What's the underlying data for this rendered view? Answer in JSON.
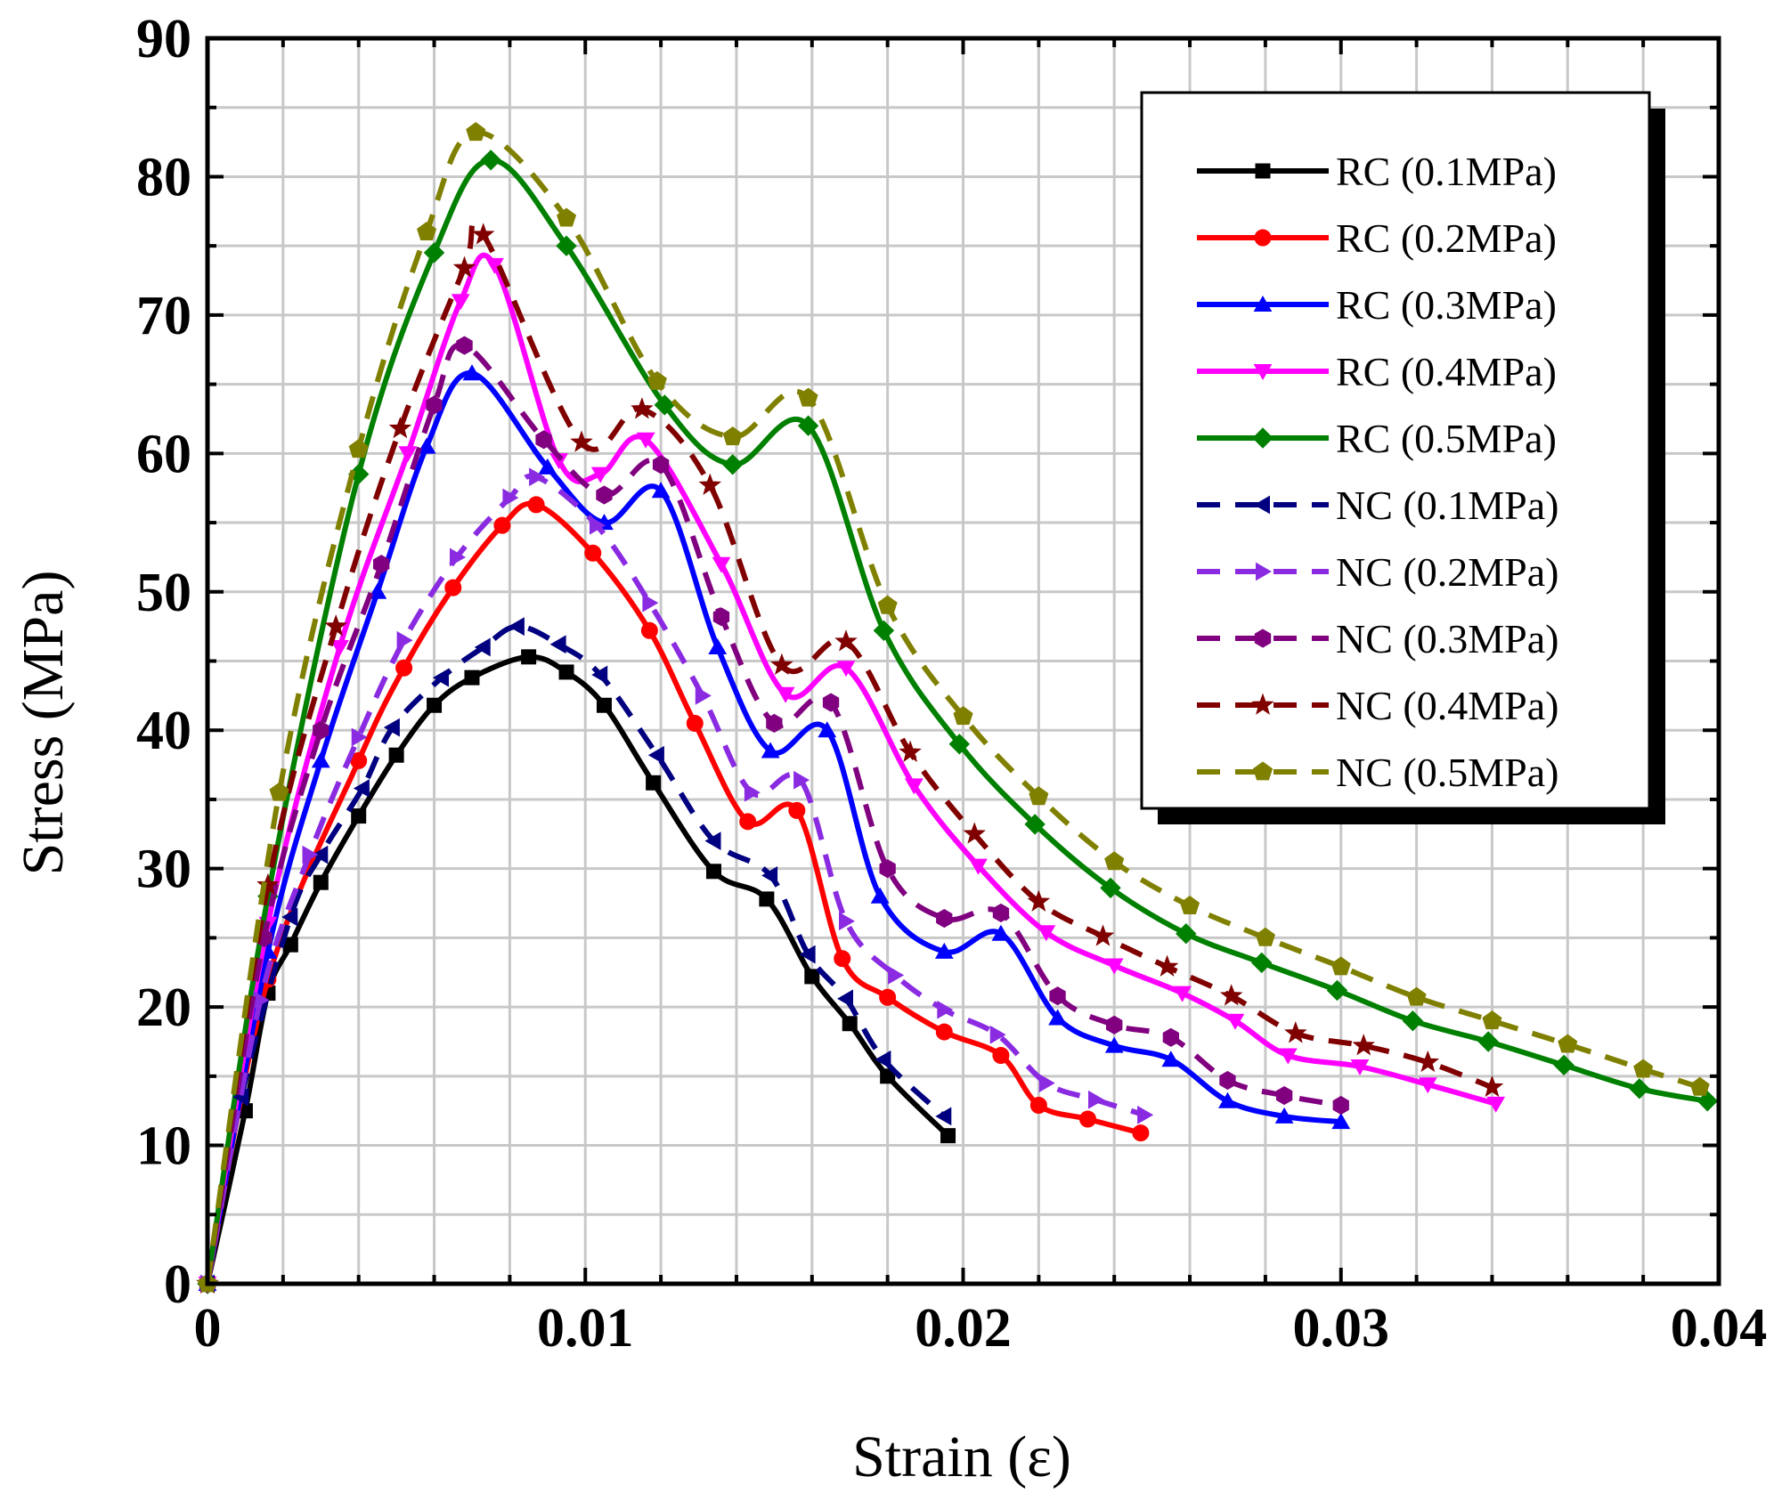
{
  "chart_data": {
    "type": "line",
    "title": "",
    "xlabel": "Strain (ε)",
    "ylabel": "Stress (MPa)",
    "xlim": [
      0,
      0.04
    ],
    "ylim": [
      0,
      90
    ],
    "x_ticks": [
      0,
      0.01,
      0.02,
      0.03,
      0.04
    ],
    "x_tick_labels": [
      "0",
      "0.01",
      "0.02",
      "0.03",
      "0.04"
    ],
    "y_ticks": [
      0,
      10,
      20,
      30,
      40,
      50,
      60,
      70,
      80,
      90
    ],
    "y_tick_labels": [
      "0",
      "10",
      "20",
      "30",
      "40",
      "50",
      "60",
      "70",
      "80",
      "90"
    ],
    "grid": true,
    "legend_position": "top-right",
    "series": [
      {
        "name": "RC (0.1MPa)",
        "color": "#000000",
        "dash": "solid",
        "marker": "square",
        "x": [
          0,
          0.001,
          0.0016,
          0.0022,
          0.003,
          0.004,
          0.005,
          0.006,
          0.007,
          0.0085,
          0.0095,
          0.0105,
          0.0118,
          0.0134,
          0.0148,
          0.016,
          0.017,
          0.018,
          0.0196
        ],
        "y": [
          0,
          12.5,
          21,
          24.5,
          29,
          33.8,
          38.2,
          41.8,
          43.8,
          45.3,
          44.2,
          41.8,
          36.2,
          29.8,
          27.8,
          22.2,
          18.8,
          15,
          10.7
        ]
      },
      {
        "name": "RC (0.2MPa)",
        "color": "#ff0000",
        "dash": "solid",
        "marker": "circle",
        "x": [
          0,
          0.0016,
          0.004,
          0.0052,
          0.0065,
          0.0078,
          0.0087,
          0.0102,
          0.0117,
          0.0129,
          0.0143,
          0.0156,
          0.0168,
          0.018,
          0.0195,
          0.021,
          0.022,
          0.0233,
          0.0247
        ],
        "y": [
          0,
          22,
          37.8,
          44.5,
          50.3,
          54.8,
          56.3,
          52.8,
          47.2,
          40.5,
          33.4,
          34.2,
          23.5,
          20.7,
          18.2,
          16.5,
          12.9,
          11.9,
          10.9
        ]
      },
      {
        "name": "RC (0.3MPa)",
        "color": "#0000ff",
        "dash": "solid",
        "marker": "triangle-up",
        "x": [
          0,
          0.0016,
          0.003,
          0.0045,
          0.0058,
          0.007,
          0.009,
          0.0105,
          0.012,
          0.0135,
          0.0149,
          0.0164,
          0.0178,
          0.0195,
          0.021,
          0.0225,
          0.024,
          0.0255,
          0.027,
          0.0285,
          0.03
        ],
        "y": [
          0,
          24,
          37.8,
          50,
          60.5,
          65.8,
          59,
          55,
          57.3,
          46,
          38.5,
          40,
          28,
          24,
          25.3,
          19.2,
          17.2,
          16.2,
          13.2,
          12.1,
          11.7
        ]
      },
      {
        "name": "RC (0.4MPa)",
        "color": "#ff00ff",
        "dash": "solid",
        "marker": "triangle-down",
        "x": [
          0,
          0.0016,
          0.0035,
          0.0053,
          0.0067,
          0.0076,
          0.0093,
          0.0104,
          0.0116,
          0.0136,
          0.0153,
          0.0169,
          0.0187,
          0.0204,
          0.0222,
          0.024,
          0.0258,
          0.0272,
          0.0286,
          0.0305,
          0.0323,
          0.0341
        ],
        "y": [
          0,
          26,
          46,
          60,
          71,
          73.6,
          59.5,
          58.5,
          61,
          52,
          42.6,
          44.5,
          36,
          30.2,
          25.4,
          23,
          21,
          19,
          16.5,
          15.7,
          14.4,
          13
        ]
      },
      {
        "name": "RC (0.5MPa)",
        "color": "#008000",
        "dash": "solid",
        "marker": "diamond",
        "x": [
          0,
          0.0016,
          0.004,
          0.006,
          0.0075,
          0.0095,
          0.0121,
          0.0139,
          0.0159,
          0.0179,
          0.0199,
          0.0219,
          0.0239,
          0.0259,
          0.0279,
          0.0299,
          0.0319,
          0.0339,
          0.0359,
          0.0379,
          0.0397
        ],
        "y": [
          0,
          28,
          58.5,
          74.5,
          81.2,
          75,
          63.5,
          59.2,
          62,
          47.2,
          39,
          33.2,
          28.6,
          25.3,
          23.2,
          21.2,
          19,
          17.5,
          15.8,
          14.1,
          13.2
        ]
      },
      {
        "name": "NC (0.1MPa)",
        "color": "#000080",
        "dash": "dashed",
        "marker": "triangle-left",
        "x": [
          0,
          0.0009,
          0.0022,
          0.003,
          0.0041,
          0.0049,
          0.0062,
          0.0073,
          0.0082,
          0.0093,
          0.0104,
          0.0119,
          0.0134,
          0.0149,
          0.0159,
          0.0169,
          0.0179,
          0.0195
        ],
        "y": [
          0,
          13.5,
          26.5,
          31,
          35.8,
          40.2,
          43.8,
          46,
          47.5,
          46.2,
          44,
          38.2,
          32,
          29.5,
          23.8,
          20.6,
          16.2,
          12.1
        ]
      },
      {
        "name": "NC (0.2MPa)",
        "color": "#8a2be2",
        "dash": "dashed",
        "marker": "triangle-right",
        "x": [
          0,
          0.0014,
          0.0027,
          0.004,
          0.0052,
          0.0066,
          0.008,
          0.0087,
          0.0103,
          0.0117,
          0.0131,
          0.0144,
          0.0157,
          0.0169,
          0.0182,
          0.0195,
          0.0209,
          0.0222,
          0.0235,
          0.0248
        ],
        "y": [
          0,
          20.5,
          31,
          39.5,
          46.5,
          52.5,
          56.8,
          58.3,
          54.8,
          49.2,
          42.5,
          35.5,
          36.4,
          26.2,
          22.3,
          19.8,
          18,
          14.5,
          13.3,
          12.2
        ]
      },
      {
        "name": "NC (0.3MPa)",
        "color": "#800080",
        "dash": "dashed",
        "marker": "hexagon",
        "x": [
          0,
          0.0015,
          0.003,
          0.0046,
          0.006,
          0.0068,
          0.0089,
          0.0105,
          0.012,
          0.0136,
          0.015,
          0.0165,
          0.018,
          0.0195,
          0.021,
          0.0225,
          0.024,
          0.0255,
          0.027,
          0.0285,
          0.03
        ],
        "y": [
          0,
          25,
          40,
          52,
          63.5,
          67.8,
          61,
          57,
          59.2,
          48.2,
          40.5,
          42,
          30,
          26.4,
          26.8,
          20.8,
          18.7,
          17.8,
          14.7,
          13.6,
          12.9
        ]
      },
      {
        "name": "NC (0.4MPa)",
        "color": "#800000",
        "dash": "dashed",
        "marker": "star",
        "x": [
          0,
          0.0016,
          0.0034,
          0.0051,
          0.0068,
          0.0073,
          0.0099,
          0.0115,
          0.0133,
          0.0152,
          0.0169,
          0.0186,
          0.0203,
          0.022,
          0.0237,
          0.0254,
          0.0271,
          0.0288,
          0.0306,
          0.0323,
          0.034
        ],
        "y": [
          0,
          28.8,
          47.5,
          61.8,
          73.4,
          75.8,
          60.8,
          63.2,
          57.7,
          44.7,
          46.4,
          38.4,
          32.5,
          27.6,
          25.1,
          22.9,
          20.8,
          18.1,
          17.2,
          16,
          14.2
        ]
      },
      {
        "name": "NC (0.5MPa)",
        "color": "#808000",
        "dash": "dashed",
        "marker": "pentagon",
        "x": [
          0,
          0.0019,
          0.004,
          0.0058,
          0.0071,
          0.0095,
          0.0119,
          0.0139,
          0.0159,
          0.018,
          0.02,
          0.022,
          0.024,
          0.026,
          0.028,
          0.03,
          0.032,
          0.034,
          0.036,
          0.038,
          0.0395
        ],
        "y": [
          0,
          35.5,
          60.3,
          76,
          83.2,
          77,
          65.2,
          61.2,
          64,
          49,
          41,
          35.2,
          30.5,
          27.3,
          25,
          22.9,
          20.7,
          19,
          17.3,
          15.5,
          14.2
        ]
      }
    ]
  }
}
